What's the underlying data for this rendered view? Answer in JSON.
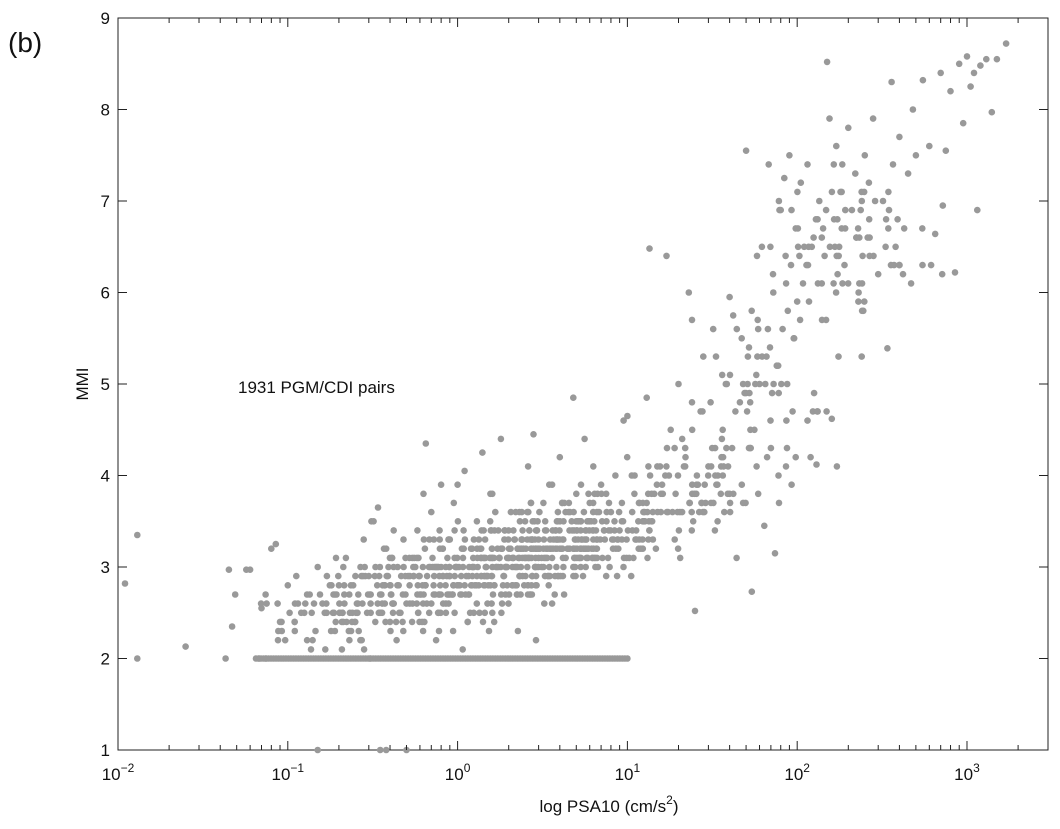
{
  "panel_label": "(b)",
  "chart_data": {
    "type": "scatter",
    "xlabel_main": "log PSA10 (cm/s",
    "xlabel_sup": "2",
    "xlabel_end": ")",
    "ylabel": "MMI",
    "annotation": "1931 PGM/CDI pairs",
    "x_scale": "log",
    "xlim": [
      0.01,
      3000
    ],
    "ylim": [
      1,
      9
    ],
    "x_ticks": [
      {
        "value": 0.01,
        "base": "10",
        "exp": "−2"
      },
      {
        "value": 0.1,
        "base": "10",
        "exp": "−1"
      },
      {
        "value": 1,
        "base": "10",
        "exp": "0"
      },
      {
        "value": 10,
        "base": "10",
        "exp": "1"
      },
      {
        "value": 100,
        "base": "10",
        "exp": "2"
      },
      {
        "value": 1000,
        "base": "10",
        "exp": "3"
      }
    ],
    "y_ticks": [
      {
        "value": 1,
        "label": "1"
      },
      {
        "value": 2,
        "label": "2"
      },
      {
        "value": 3,
        "label": "3"
      },
      {
        "value": 4,
        "label": "4"
      },
      {
        "value": 5,
        "label": "5"
      },
      {
        "value": 6,
        "label": "6"
      },
      {
        "value": 7,
        "label": "7"
      },
      {
        "value": 8,
        "label": "8"
      },
      {
        "value": 9,
        "label": "9"
      }
    ],
    "grid": false,
    "point_color": "#999999",
    "points": [
      [
        0.011,
        2.82
      ],
      [
        0.013,
        3.35
      ],
      [
        0.013,
        2.0
      ],
      [
        0.025,
        2.13
      ],
      [
        0.043,
        2.0
      ],
      [
        0.045,
        2.97
      ],
      [
        0.047,
        2.35
      ],
      [
        0.049,
        2.7
      ],
      [
        0.057,
        2.97
      ],
      [
        0.06,
        2.97
      ],
      [
        0.07,
        2.55
      ],
      [
        0.075,
        2.6
      ],
      [
        0.08,
        3.2
      ],
      [
        0.085,
        3.25
      ],
      [
        0.09,
        2.4
      ],
      [
        0.1,
        2.8
      ],
      [
        0.11,
        2.3
      ],
      [
        0.12,
        2.5
      ],
      [
        0.13,
        2.7
      ],
      [
        0.14,
        2.2
      ],
      [
        0.15,
        3.0
      ],
      [
        0.16,
        2.6
      ],
      [
        0.17,
        2.9
      ],
      [
        0.18,
        2.3
      ],
      [
        0.2,
        2.8
      ],
      [
        0.22,
        3.1
      ],
      [
        0.24,
        2.5
      ],
      [
        0.26,
        2.7
      ],
      [
        0.28,
        3.3
      ],
      [
        0.3,
        2.9
      ],
      [
        0.32,
        3.5
      ],
      [
        0.34,
        3.65
      ],
      [
        0.36,
        2.6
      ],
      [
        0.38,
        3.2
      ],
      [
        0.4,
        2.4
      ],
      [
        0.42,
        3.0
      ],
      [
        0.45,
        2.8
      ],
      [
        0.48,
        3.3
      ],
      [
        0.5,
        2.6
      ],
      [
        0.52,
        3.1
      ],
      [
        0.55,
        2.9
      ],
      [
        0.58,
        3.4
      ],
      [
        0.6,
        2.7
      ],
      [
        0.63,
        3.8
      ],
      [
        0.65,
        4.35
      ],
      [
        0.68,
        2.5
      ],
      [
        0.7,
        3.6
      ],
      [
        0.75,
        3.0
      ],
      [
        0.8,
        3.9
      ],
      [
        0.85,
        2.8
      ],
      [
        0.9,
        3.3
      ],
      [
        0.95,
        3.7
      ],
      [
        1.0,
        3.9
      ],
      [
        1.05,
        2.9
      ],
      [
        1.1,
        4.05
      ],
      [
        1.2,
        3.2
      ],
      [
        1.3,
        3.5
      ],
      [
        1.4,
        4.25
      ],
      [
        1.5,
        2.6
      ],
      [
        1.6,
        3.8
      ],
      [
        1.7,
        3.0
      ],
      [
        1.8,
        4.4
      ],
      [
        1.9,
        3.4
      ],
      [
        2.0,
        3.1
      ],
      [
        2.1,
        2.8
      ],
      [
        2.2,
        3.6
      ],
      [
        2.4,
        3.3
      ],
      [
        2.6,
        4.1
      ],
      [
        2.8,
        4.45
      ],
      [
        3.0,
        3.2
      ],
      [
        3.2,
        3.7
      ],
      [
        3.4,
        2.9
      ],
      [
        3.6,
        3.9
      ],
      [
        3.8,
        3.3
      ],
      [
        4.0,
        4.2
      ],
      [
        4.2,
        3.0
      ],
      [
        4.5,
        3.6
      ],
      [
        4.8,
        4.85
      ],
      [
        5.0,
        3.8
      ],
      [
        5.3,
        3.2
      ],
      [
        5.6,
        4.4
      ],
      [
        6.0,
        3.5
      ],
      [
        6.3,
        4.1
      ],
      [
        6.6,
        3.3
      ],
      [
        7.0,
        3.9
      ],
      [
        7.5,
        2.9
      ],
      [
        8.0,
        3.6
      ],
      [
        8.5,
        4.0
      ],
      [
        9.0,
        3.4
      ],
      [
        9.5,
        4.6
      ],
      [
        10.0,
        4.65
      ],
      [
        11.0,
        3.8
      ],
      [
        12.0,
        3.2
      ],
      [
        13.0,
        4.85
      ],
      [
        13.5,
        6.48
      ],
      [
        14.0,
        3.5
      ],
      [
        15.0,
        4.1
      ],
      [
        16.0,
        3.9
      ],
      [
        17.0,
        6.4
      ],
      [
        18.0,
        4.5
      ],
      [
        19.0,
        3.3
      ],
      [
        20.0,
        5.0
      ],
      [
        21.0,
        3.6
      ],
      [
        22.0,
        4.2
      ],
      [
        23.0,
        6.0
      ],
      [
        24.0,
        5.7
      ],
      [
        25.0,
        2.52
      ],
      [
        26.0,
        3.9
      ],
      [
        27.0,
        4.7
      ],
      [
        28.0,
        5.3
      ],
      [
        30.0,
        4.1
      ],
      [
        32.0,
        5.6
      ],
      [
        34.0,
        3.5
      ],
      [
        36.0,
        4.4
      ],
      [
        38.0,
        5.0
      ],
      [
        40.0,
        5.95
      ],
      [
        42.0,
        5.75
      ],
      [
        44.0,
        3.1
      ],
      [
        46.0,
        4.8
      ],
      [
        48.0,
        3.7
      ],
      [
        50.0,
        7.55
      ],
      [
        52.0,
        5.4
      ],
      [
        54.0,
        2.73
      ],
      [
        56.0,
        4.5
      ],
      [
        58.0,
        6.4
      ],
      [
        60.0,
        5.0
      ],
      [
        62.0,
        6.5
      ],
      [
        64.0,
        3.45
      ],
      [
        66.0,
        5.3
      ],
      [
        68.0,
        7.4
      ],
      [
        70.0,
        4.3
      ],
      [
        72.0,
        6.2
      ],
      [
        74.0,
        3.15
      ],
      [
        76.0,
        5.2
      ],
      [
        78.0,
        7.0
      ],
      [
        80.0,
        6.9
      ],
      [
        82.0,
        5.6
      ],
      [
        84.0,
        7.25
      ],
      [
        86.0,
        6.1
      ],
      [
        88.0,
        5.8
      ],
      [
        90.0,
        7.5
      ],
      [
        92.0,
        6.3
      ],
      [
        94.0,
        4.7
      ],
      [
        96.0,
        5.5
      ],
      [
        98.0,
        6.7
      ],
      [
        100.0,
        5.9
      ],
      [
        105.0,
        7.2
      ],
      [
        110.0,
        6.5
      ],
      [
        115.0,
        7.4
      ],
      [
        120.0,
        4.2
      ],
      [
        125.0,
        6.6
      ],
      [
        130.0,
        4.12
      ],
      [
        135.0,
        7.0
      ],
      [
        140.0,
        5.7
      ],
      [
        145.0,
        6.4
      ],
      [
        150.0,
        8.52
      ],
      [
        155.0,
        7.9
      ],
      [
        160.0,
        4.62
      ],
      [
        165.0,
        6.8
      ],
      [
        170.0,
        7.6
      ],
      [
        175.0,
        5.3
      ],
      [
        180.0,
        7.1
      ],
      [
        190.0,
        6.3
      ],
      [
        200.0,
        7.8
      ],
      [
        210.0,
        6.9
      ],
      [
        220.0,
        7.3
      ],
      [
        230.0,
        6.0
      ],
      [
        240.0,
        5.3
      ],
      [
        250.0,
        7.5
      ],
      [
        260.0,
        6.6
      ],
      [
        280.0,
        7.9
      ],
      [
        300.0,
        6.2
      ],
      [
        320.0,
        7.0
      ],
      [
        340.0,
        5.39
      ],
      [
        360.0,
        8.3
      ],
      [
        380.0,
        6.5
      ],
      [
        400.0,
        7.7
      ],
      [
        420.0,
        6.2
      ],
      [
        450.0,
        7.3
      ],
      [
        480.0,
        8.0
      ],
      [
        500.0,
        7.5
      ],
      [
        550.0,
        8.32
      ],
      [
        600.0,
        7.6
      ],
      [
        650.0,
        6.64
      ],
      [
        700.0,
        8.4
      ],
      [
        720.0,
        6.95
      ],
      [
        750.0,
        7.55
      ],
      [
        800.0,
        8.2
      ],
      [
        850.0,
        6.22
      ],
      [
        900.0,
        8.5
      ],
      [
        950.0,
        7.85
      ],
      [
        1000.0,
        8.58
      ],
      [
        1050.0,
        8.25
      ],
      [
        1100.0,
        8.4
      ],
      [
        1150.0,
        6.9
      ],
      [
        1200.0,
        8.48
      ],
      [
        1300.0,
        8.55
      ],
      [
        1400.0,
        7.97
      ],
      [
        1500.0,
        8.55
      ],
      [
        1700.0,
        8.72
      ],
      [
        0.15,
        1.0
      ],
      [
        0.35,
        1.0
      ],
      [
        0.38,
        1.0
      ],
      [
        0.5,
        1.0
      ]
    ],
    "floor_points": {
      "y": 2.0,
      "x_min": 0.065,
      "x_max": 10.0,
      "count": 150
    },
    "cloud": [
      {
        "cx": 0.3,
        "cy": 2.65,
        "sx": 0.45,
        "sy": 0.35,
        "n": 170
      },
      {
        "cx": 1.5,
        "cy": 2.95,
        "sx": 0.42,
        "sy": 0.38,
        "n": 260
      },
      {
        "cx": 4.5,
        "cy": 3.3,
        "sx": 0.35,
        "sy": 0.35,
        "n": 230
      },
      {
        "cx": 20.0,
        "cy": 3.8,
        "sx": 0.3,
        "sy": 0.4,
        "n": 90
      },
      {
        "cx": 60.0,
        "cy": 4.8,
        "sx": 0.25,
        "sy": 0.7,
        "n": 60
      },
      {
        "cx": 200.0,
        "cy": 6.6,
        "sx": 0.3,
        "sy": 0.55,
        "n": 80
      }
    ]
  }
}
